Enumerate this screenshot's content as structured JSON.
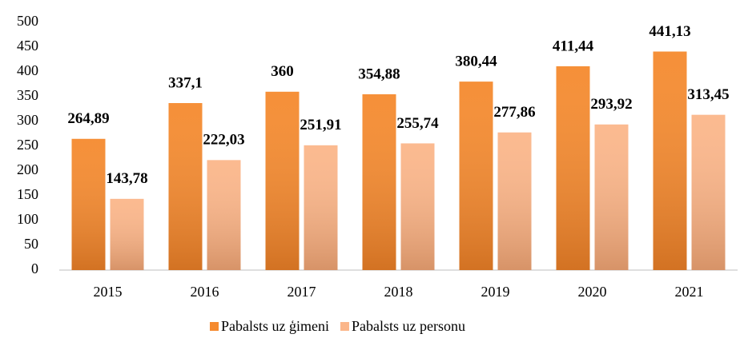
{
  "chart_data": {
    "type": "bar",
    "categories": [
      "2015",
      "2016",
      "2017",
      "2018",
      "2019",
      "2020",
      "2021"
    ],
    "series": [
      {
        "name": "Pabalsts uz ģimeni",
        "color": "#f58a2e",
        "values": [
          264.89,
          337.1,
          360,
          354.88,
          380.44,
          411.44,
          441.13
        ],
        "value_labels": [
          "264,89",
          "337,1",
          "360",
          "354,88",
          "380,44",
          "411,44",
          "441,13"
        ]
      },
      {
        "name": "Pabalsts uz personu",
        "color": "#fbb68a",
        "values": [
          143.78,
          222.03,
          251.91,
          255.74,
          277.86,
          293.92,
          313.45
        ],
        "value_labels": [
          "143,78",
          "222,03",
          "251,91",
          "255,74",
          "277,86",
          "293,92",
          "313,45"
        ]
      }
    ],
    "ylim": [
      0,
      500
    ],
    "yticks": [
      0,
      50,
      100,
      150,
      200,
      250,
      300,
      350,
      400,
      450,
      500
    ],
    "grid": false,
    "legend": "bottom"
  }
}
